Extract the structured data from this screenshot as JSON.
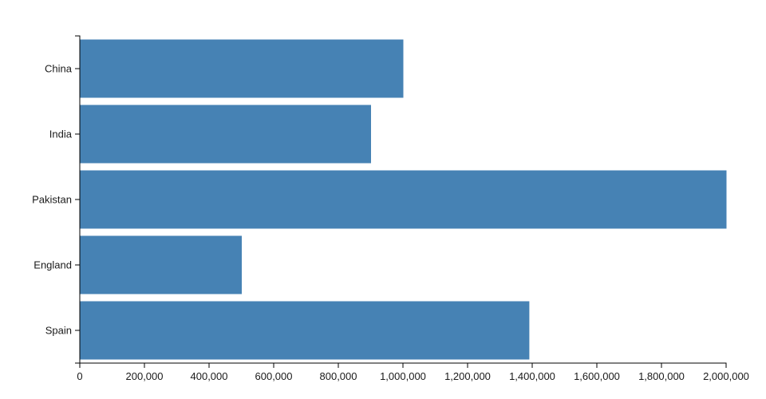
{
  "chart_data": {
    "type": "bar",
    "orientation": "horizontal",
    "title": "",
    "xlabel": "",
    "ylabel": "",
    "categories": [
      "China",
      "India",
      "Pakistan",
      "England",
      "Spain"
    ],
    "values": [
      1000000,
      900000,
      2000000,
      500000,
      1390000
    ],
    "xlim": [
      0,
      2000000
    ],
    "xticks": [
      0,
      200000,
      400000,
      600000,
      800000,
      1000000,
      1200000,
      1400000,
      1600000,
      1800000,
      2000000
    ],
    "xtick_labels": [
      "0",
      "200,000",
      "400,000",
      "600,000",
      "800,000",
      "1,000,000",
      "1,200,000",
      "1,400,000",
      "1,600,000",
      "1,800,000",
      "2,000,000"
    ],
    "grid": false,
    "legend": null,
    "bar_color": "#4682b4",
    "axis_color": "#000000",
    "text_color": "#1a1a1a"
  }
}
